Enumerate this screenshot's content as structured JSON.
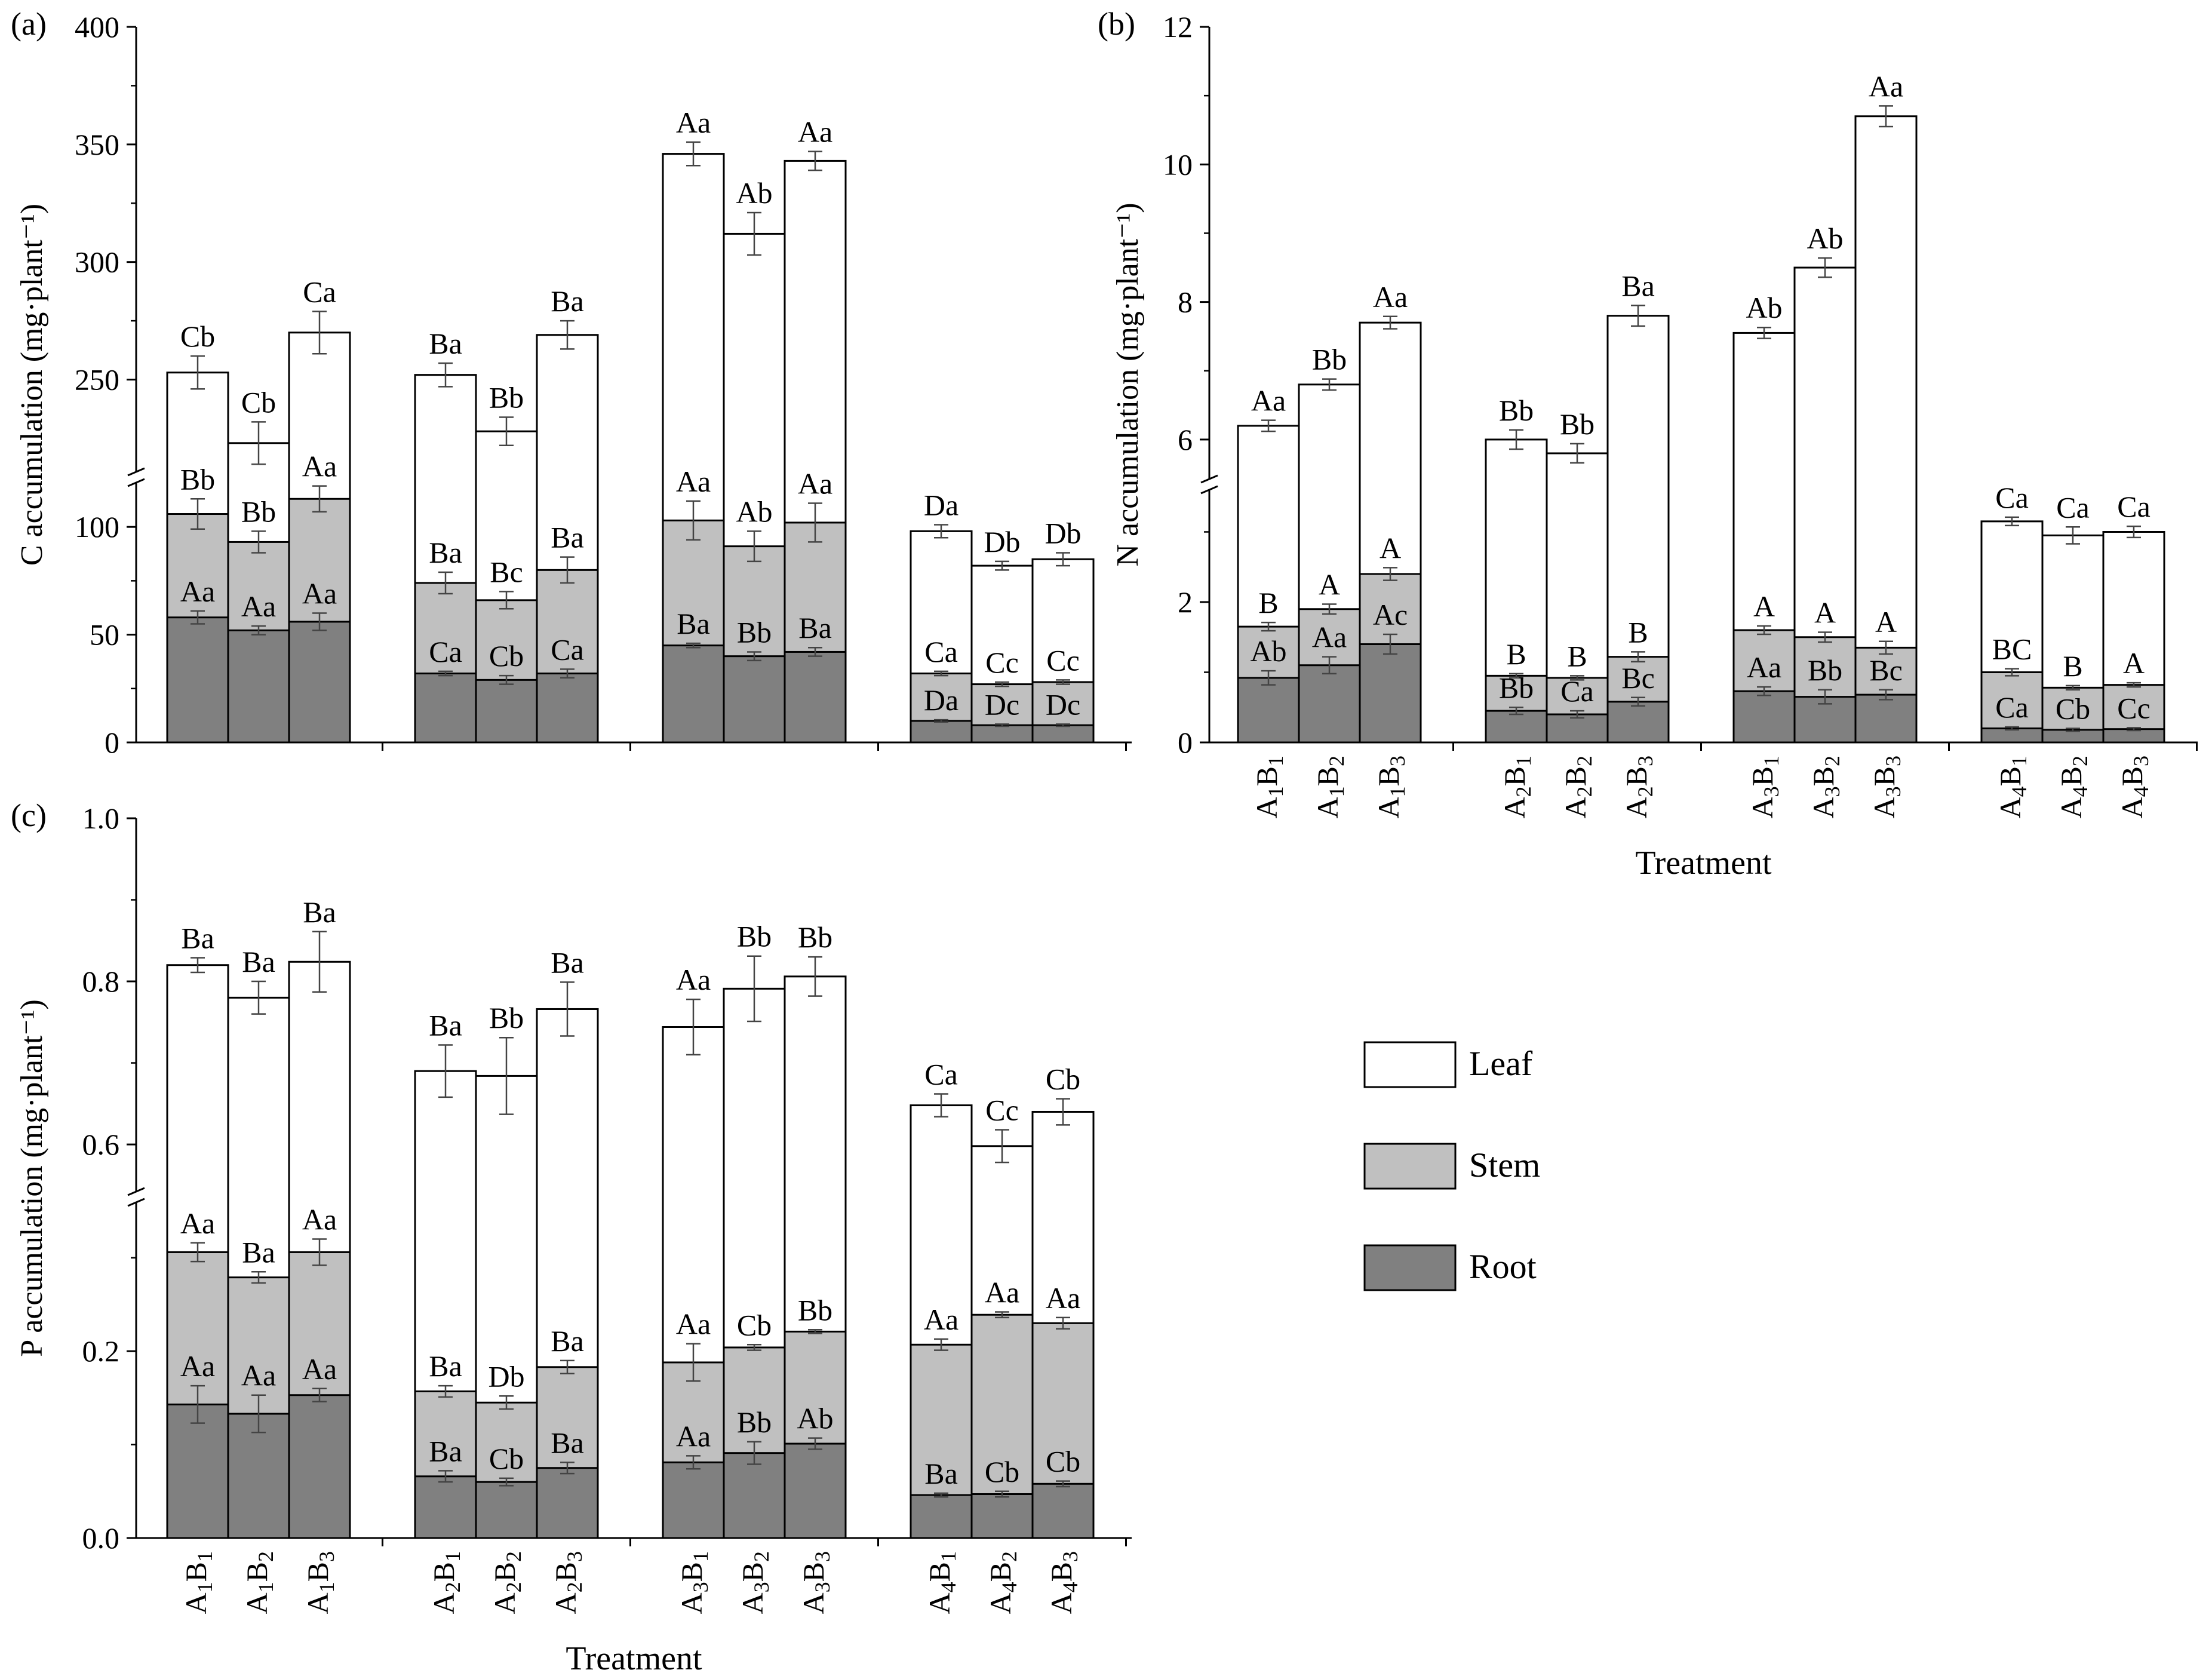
{
  "legend": {
    "items": [
      {
        "name": "Leaf",
        "color": "#ffffff"
      },
      {
        "name": "Stem",
        "color": "#c0c0c0"
      },
      {
        "name": "Root",
        "color": "#808080"
      }
    ]
  },
  "colors": {
    "leaf": "#ffffff",
    "stem": "#c0c0c0",
    "root": "#808080",
    "stroke": "#000000"
  },
  "chart_data": [
    {
      "panel_label": "(a)",
      "type": "bar",
      "stacked": true,
      "ylabel": "C accumulation (mg·plant⁻¹)",
      "xlabel": "",
      "y_axis_break": true,
      "lower_range": [
        0,
        120
      ],
      "upper_range": [
        210,
        400
      ],
      "lower_ticks": [
        0,
        50,
        100
      ],
      "upper_ticks": [
        250,
        300,
        350,
        400
      ],
      "groups": [
        {
          "label": "A1",
          "categories": [
            "A1B1",
            "A1B2",
            "A1B3"
          ]
        },
        {
          "label": "A2",
          "categories": [
            "A2B1",
            "A2B2",
            "A2B3"
          ]
        },
        {
          "label": "A3",
          "categories": [
            "A3B1",
            "A3B2",
            "A3B3"
          ]
        },
        {
          "label": "A4",
          "categories": [
            "A4B1",
            "A4B2",
            "A4B3"
          ]
        }
      ],
      "series": [
        {
          "name": "Root",
          "values": [
            58,
            52,
            56,
            32,
            29,
            32,
            45,
            40,
            42,
            10,
            8,
            8
          ],
          "errors": [
            3,
            2,
            4,
            1,
            2,
            2,
            1,
            2,
            2,
            0.5,
            0.5,
            0.5
          ],
          "labels": [
            "Aa",
            "Aa",
            "Aa",
            "Ca",
            "Cb",
            "Ca",
            "Ba",
            "Bb",
            "Ba",
            "Da",
            "Dc",
            "Dc"
          ]
        },
        {
          "name": "Stem",
          "values": [
            106,
            93,
            113,
            74,
            66,
            80,
            103,
            91,
            102,
            32,
            27,
            28
          ],
          "errors": [
            7,
            5,
            6,
            5,
            4,
            6,
            9,
            7,
            9,
            1,
            1,
            1
          ],
          "labels": [
            "Bb",
            "Bb",
            "Aa",
            "Ba",
            "Bc",
            "Ba",
            "Aa",
            "Ab",
            "Aa",
            "Ca",
            "Cc",
            "Cc"
          ]
        },
        {
          "name": "Leaf",
          "values": [
            253,
            223,
            270,
            252,
            228,
            269,
            346,
            312,
            343,
            98,
            82,
            85
          ],
          "errors": [
            7,
            9,
            9,
            5,
            6,
            6,
            5,
            9,
            4,
            3,
            2,
            3
          ],
          "labels": [
            "Cb",
            "Cb",
            "Ca",
            "Ba",
            "Bb",
            "Ba",
            "Aa",
            "Ab",
            "Aa",
            "Da",
            "Db",
            "Db"
          ]
        }
      ]
    },
    {
      "panel_label": "(b)",
      "type": "bar",
      "stacked": true,
      "ylabel": "N accumulation (mg·plant⁻¹)",
      "xlabel": "Treatment",
      "y_axis_break": true,
      "lower_range": [
        0,
        3.6
      ],
      "upper_range": [
        5.4,
        12
      ],
      "lower_ticks": [
        0,
        2
      ],
      "upper_ticks": [
        6,
        8,
        10,
        12
      ],
      "groups": [
        {
          "label": "A1",
          "categories": [
            "A1B1",
            "A1B2",
            "A1B3"
          ]
        },
        {
          "label": "A2",
          "categories": [
            "A2B1",
            "A2B2",
            "A2B3"
          ]
        },
        {
          "label": "A3",
          "categories": [
            "A3B1",
            "A3B2",
            "A3B3"
          ]
        },
        {
          "label": "A4",
          "categories": [
            "A4B1",
            "A4B2",
            "A4B3"
          ]
        }
      ],
      "series": [
        {
          "name": "Root",
          "values": [
            0.92,
            1.1,
            1.4,
            0.45,
            0.4,
            0.58,
            0.73,
            0.65,
            0.68,
            0.2,
            0.18,
            0.19
          ],
          "errors": [
            0.1,
            0.12,
            0.14,
            0.05,
            0.05,
            0.06,
            0.06,
            0.1,
            0.07,
            0.02,
            0.02,
            0.02
          ],
          "labels": [
            "Ab",
            "Aa",
            "Ac",
            "Bb",
            "Ca",
            "Bc",
            "Aa",
            "Bb",
            "Bc",
            "Ca",
            "Cb",
            "Cc"
          ]
        },
        {
          "name": "Stem",
          "values": [
            1.65,
            1.9,
            2.4,
            0.95,
            0.92,
            1.22,
            1.6,
            1.5,
            1.35,
            1.0,
            0.78,
            0.82
          ],
          "errors": [
            0.06,
            0.07,
            0.09,
            0.03,
            0.03,
            0.07,
            0.06,
            0.07,
            0.09,
            0.05,
            0.03,
            0.03
          ],
          "labels": [
            "B",
            "A",
            "A",
            "B",
            "B",
            "B",
            "A",
            "A",
            "A",
            "BC",
            "B",
            "A"
          ]
        },
        {
          "name": "Leaf",
          "values": [
            6.2,
            6.8,
            7.7,
            6.0,
            5.8,
            7.8,
            7.55,
            8.5,
            10.7,
            3.15,
            2.95,
            3.0
          ],
          "errors": [
            0.08,
            0.08,
            0.09,
            0.14,
            0.14,
            0.15,
            0.08,
            0.14,
            0.15,
            0.06,
            0.12,
            0.08
          ],
          "labels": [
            "Aa",
            "Bb",
            "Aa",
            "Bb",
            "Bb",
            "Ba",
            "Ab",
            "Ab",
            "Aa",
            "Ca",
            "Ca",
            "Ca"
          ]
        }
      ]
    },
    {
      "panel_label": "(c)",
      "type": "bar",
      "stacked": true,
      "ylabel": "P accumulation (mg·plant⁻¹)",
      "xlabel": "Treatment",
      "y_axis_break": true,
      "lower_range": [
        0,
        0.36
      ],
      "upper_range": [
        0.54,
        1.0
      ],
      "lower_ticks": [
        0.0,
        0.2
      ],
      "upper_ticks": [
        0.6,
        0.8,
        1.0
      ],
      "groups": [
        {
          "label": "A1",
          "categories": [
            "A1B1",
            "A1B2",
            "A1B3"
          ]
        },
        {
          "label": "A2",
          "categories": [
            "A2B1",
            "A2B2",
            "A2B3"
          ]
        },
        {
          "label": "A3",
          "categories": [
            "A3B1",
            "A3B2",
            "A3B3"
          ]
        },
        {
          "label": "A4",
          "categories": [
            "A4B1",
            "A4B2",
            "A4B3"
          ]
        }
      ],
      "series": [
        {
          "name": "Root",
          "values": [
            0.143,
            0.133,
            0.153,
            0.066,
            0.06,
            0.075,
            0.081,
            0.091,
            0.101,
            0.046,
            0.047,
            0.058
          ],
          "errors": [
            0.02,
            0.02,
            0.007,
            0.006,
            0.004,
            0.006,
            0.007,
            0.012,
            0.006,
            0.002,
            0.003,
            0.003
          ],
          "labels": [
            "Aa",
            "Aa",
            "Aa",
            "Ba",
            "Cb",
            "Ba",
            "Aa",
            "Bb",
            "Ab",
            "Ba",
            "Cb",
            "Cb"
          ]
        },
        {
          "name": "Stem",
          "values": [
            0.306,
            0.279,
            0.306,
            0.157,
            0.145,
            0.183,
            0.188,
            0.204,
            0.221,
            0.207,
            0.239,
            0.23
          ],
          "errors": [
            0.01,
            0.006,
            0.014,
            0.006,
            0.007,
            0.007,
            0.02,
            0.003,
            0.002,
            0.006,
            0.003,
            0.006
          ],
          "labels": [
            "Aa",
            "Ba",
            "Aa",
            "Ba",
            "Db",
            "Ba",
            "Aa",
            "Cb",
            "Bb",
            "Aa",
            "Aa",
            "Aa"
          ]
        },
        {
          "name": "Leaf",
          "values": [
            0.82,
            0.78,
            0.824,
            0.69,
            0.684,
            0.766,
            0.744,
            0.791,
            0.806,
            0.648,
            0.598,
            0.64
          ],
          "errors": [
            0.009,
            0.02,
            0.037,
            0.032,
            0.047,
            0.033,
            0.034,
            0.04,
            0.024,
            0.014,
            0.02,
            0.016
          ],
          "labels": [
            "Ba",
            "Ba",
            "Ba",
            "Ba",
            "Bb",
            "Ba",
            "Aa",
            "Bb",
            "Bb",
            "Ca",
            "Cc",
            "Cb"
          ]
        }
      ]
    }
  ]
}
